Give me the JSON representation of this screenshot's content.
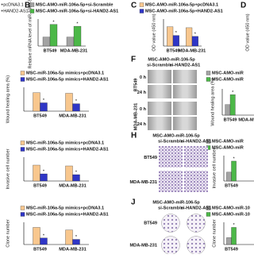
{
  "top_left_legend": [
    "+pcDNA3.1",
    "+HAND2-AS1"
  ],
  "chart_data": [
    {
      "type": "bar",
      "panel": "B",
      "y_label": "Relative mRNA level of miR-106a-5p",
      "categories": [
        "BT549",
        "MDA-MB-231"
      ],
      "series": [
        {
          "name": "MSC-AMO-miR-106a-5p+si-Scramble",
          "color": "#a3a3a3",
          "values": [
            1.0,
            1.0
          ]
        },
        {
          "name": "MSC-AMO-miR-106a-5p+si-HAND2-AS1",
          "color": "#4cb848",
          "values": [
            2.4,
            2.2
          ]
        }
      ],
      "ylim": [
        0,
        3
      ],
      "annotations": [
        {
          "text": "*",
          "series": 1,
          "category": 0
        },
        {
          "text": "*",
          "series": 1,
          "category": 1
        }
      ]
    },
    {
      "type": "bar",
      "panel": "C",
      "y_label": "OD value (450 nm)",
      "categories": [
        "BT549",
        "MDA-MB-231"
      ],
      "series": [
        {
          "name": "MSC-AMO-miR-106a-5p+pcDNA3.1",
          "color": "#f8c78e",
          "values": [
            1.0,
            0.95
          ]
        },
        {
          "name": "MSC-AMO-miR-106a-5p+HAND2-AS1",
          "color": "#2f36c6",
          "values": [
            0.55,
            0.5
          ]
        }
      ],
      "ylim": [
        0,
        1.4
      ],
      "annotations": [
        {
          "text": "*",
          "series": 1,
          "category": 0
        },
        {
          "text": "*",
          "series": 1,
          "category": 1
        }
      ]
    },
    {
      "type": "bar",
      "panel": "D",
      "y_label": "OD value (450 nm)",
      "categories": [],
      "series": []
    },
    {
      "type": "bar",
      "y_label": "Wound healing area (%)",
      "categories": [
        "BT549",
        "MDA-MB-231"
      ],
      "series": [
        {
          "name": "MSC-miR-106a-5p mimics+pcDNA3.1",
          "color": "#f8c78e",
          "values": [
            62,
            60
          ]
        },
        {
          "name": "MSC-miR-106a-5p mimics+HAND2-AS1",
          "color": "#2f36c6",
          "values": [
            28,
            25
          ]
        }
      ],
      "ylim": [
        0,
        80
      ],
      "annotations": [
        {
          "text": "*",
          "series": 1,
          "category": 0
        },
        {
          "text": "*",
          "series": 1,
          "category": 1
        }
      ]
    },
    {
      "type": "bar",
      "y_label": "Invasive cell number",
      "categories": [
        "BT549",
        "MDA-MB-231"
      ],
      "series": [
        {
          "name": "MSC-miR-106a-5p mimics+pcDNA3.1",
          "color": "#f8c78e",
          "values": [
            100,
            95
          ]
        },
        {
          "name": "MSC-miR-106a-5p mimics+HAND2-AS1",
          "color": "#2f36c6",
          "values": [
            45,
            40
          ]
        }
      ],
      "ylim": [
        0,
        150
      ],
      "annotations": [
        {
          "text": "*",
          "series": 1,
          "category": 0
        },
        {
          "text": "*",
          "series": 1,
          "category": 1
        }
      ]
    },
    {
      "type": "bar",
      "y_label": "Clone number",
      "categories": [
        "BT549",
        "MDA-MB-231"
      ],
      "series": [
        {
          "name": "MSC-miR-106a-5p mimics+pcDNA3.1",
          "color": "#f8c78e",
          "values": [
            100,
            85
          ]
        },
        {
          "name": "MSC-miR-106a-5p mimics+HAND2-AS1",
          "color": "#2f36c6",
          "values": [
            38,
            30
          ]
        }
      ],
      "ylim": [
        0,
        130
      ],
      "annotations": [
        {
          "text": "*",
          "series": 1,
          "category": 0
        },
        {
          "text": "*",
          "series": 1,
          "category": 1
        }
      ]
    },
    {
      "type": "bar",
      "y_label": "Wound healing area (%)",
      "categories": [
        "BT549",
        "MDA-M"
      ],
      "series": [
        {
          "name": "MSC-AMO-miR",
          "color": "#a3a3a3",
          "values": [
            18,
            null
          ]
        },
        {
          "name": "MSC-AMO-miR",
          "color": "#4cb848",
          "values": [
            35,
            null
          ]
        }
      ],
      "ylim": [
        0,
        45
      ],
      "annotations": [
        {
          "text": "*",
          "series": 1,
          "category": 0
        }
      ]
    },
    {
      "type": "bar",
      "y_label": "Invasive cell number",
      "categories": [
        "BT549"
      ],
      "series": [
        {
          "name": "MSC-AMO-miR",
          "color": "#a3a3a3",
          "values": [
            80
          ]
        },
        {
          "name": "MSC-AMO-miR",
          "color": "#4cb848",
          "values": [
            180
          ]
        }
      ],
      "ylim": [
        0,
        230
      ],
      "annotations": [
        {
          "text": "*",
          "series": 1,
          "category": 0
        }
      ]
    },
    {
      "type": "bar",
      "y_label": "Clone number",
      "categories": [
        "BT549"
      ],
      "series": [
        {
          "name": "MSC-AMO-miR-10",
          "color": "#a3a3a3",
          "values": [
            40
          ]
        },
        {
          "name": "MSC-AMO-miR-10",
          "color": "#4cb848",
          "values": [
            100
          ]
        }
      ],
      "ylim": [
        0,
        130
      ],
      "annotations": [
        {
          "text": "*",
          "series": 1,
          "category": 0
        }
      ]
    }
  ],
  "image_panels": [
    {
      "panel": "F",
      "title": "MSC-AMO-miR-106-5p",
      "columns": [
        "si-Scramble",
        "si-HAND2-AS1"
      ],
      "rows": [
        {
          "label": "BT549",
          "times": [
            "0 h",
            "24 h"
          ]
        },
        {
          "label": "MDA-MB-231",
          "times": [
            "0 h",
            "24 h"
          ]
        }
      ]
    },
    {
      "panel": "H",
      "title": "MSC-AMO-miR-106-5p",
      "columns": [
        "si-Scramble",
        "si-HAND2-AS1"
      ],
      "rows": [
        {
          "label": "BT549"
        },
        {
          "label": "MDA-MB-231"
        }
      ]
    },
    {
      "panel": "J",
      "title": "MSC-AMO-miR-106-5p",
      "columns": [
        "si-Scramble",
        "si-HAND2-AS1"
      ],
      "rows": [
        {
          "label": "BT549"
        },
        {
          "label": "MDA-MB-231"
        }
      ]
    }
  ]
}
